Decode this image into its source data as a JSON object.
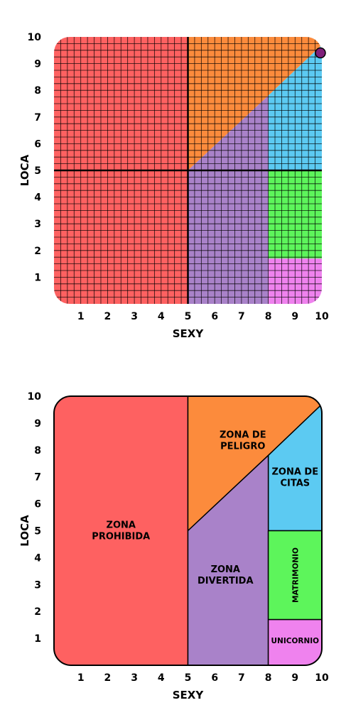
{
  "colors": {
    "red": "#fe6161",
    "orange": "#fc8b3c",
    "blue": "#5ccaf2",
    "purple": "#a982c9",
    "green": "#5df55b",
    "pink": "#ef82ee",
    "dot": "#7e1f7a"
  },
  "chart_data": [
    {
      "type": "scatter",
      "xlabel": "SEXY",
      "ylabel": "LOCA",
      "xlim": [
        0,
        10
      ],
      "ylim": [
        0,
        10
      ],
      "x_ticks": [
        "1",
        "2",
        "3",
        "4",
        "5",
        "6",
        "7",
        "8",
        "9",
        "10"
      ],
      "y_ticks": [
        "1",
        "2",
        "3",
        "4",
        "5",
        "6",
        "7",
        "8",
        "9",
        "10"
      ],
      "grid": true,
      "points": [
        {
          "x": 10,
          "y": 9.4
        }
      ]
    },
    {
      "type": "table",
      "xlabel": "SEXY",
      "ylabel": "LOCA",
      "xlim": [
        0,
        10
      ],
      "ylim": [
        0,
        10
      ],
      "x_ticks": [
        "1",
        "2",
        "3",
        "4",
        "5",
        "6",
        "7",
        "8",
        "9",
        "10"
      ],
      "y_ticks": [
        "1",
        "2",
        "3",
        "4",
        "5",
        "6",
        "7",
        "8",
        "9",
        "10"
      ],
      "grid": false,
      "zones": [
        {
          "lines": [
            "ZONA",
            "PROHIBIDA"
          ]
        },
        {
          "lines": [
            "ZONA DE",
            "PELIGRO"
          ]
        },
        {
          "lines": [
            "ZONA DE",
            "CITAS"
          ]
        },
        {
          "lines": [
            "ZONA",
            "DIVERTIDA"
          ]
        },
        {
          "lines": [
            "MATRIMONIO"
          ]
        },
        {
          "lines": [
            "UNICORNIO"
          ]
        }
      ]
    }
  ]
}
